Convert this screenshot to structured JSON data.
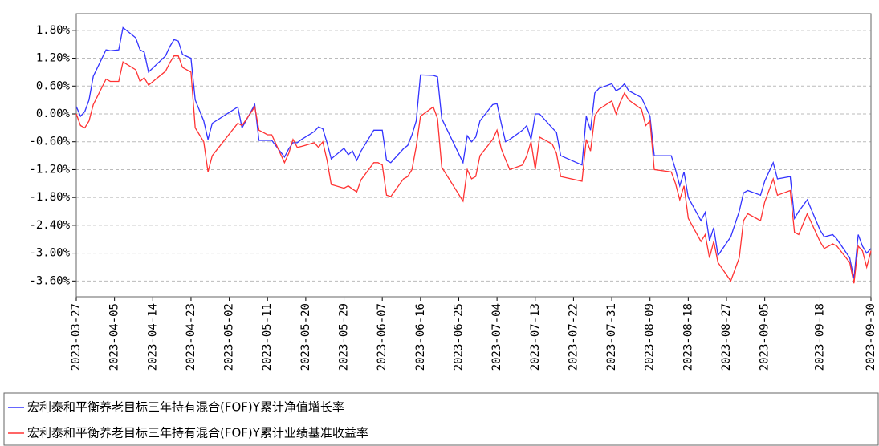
{
  "chart_data": {
    "type": "line",
    "x": [
      "2023-03-27",
      "2023-03-28",
      "2023-03-29",
      "2023-03-30",
      "2023-03-31",
      "2023-04-03",
      "2023-04-04",
      "2023-04-06",
      "2023-04-07",
      "2023-04-10",
      "2023-04-11",
      "2023-04-12",
      "2023-04-13",
      "2023-04-17",
      "2023-04-18",
      "2023-04-19",
      "2023-04-20",
      "2023-04-21",
      "2023-04-23",
      "2023-04-24",
      "2023-04-26",
      "2023-04-27",
      "2023-04-28",
      "2023-05-04",
      "2023-05-05",
      "2023-05-08",
      "2023-05-09",
      "2023-05-10",
      "2023-05-11",
      "2023-05-12",
      "2023-05-15",
      "2023-05-16",
      "2023-05-17",
      "2023-05-18",
      "2023-05-19",
      "2023-05-22",
      "2023-05-23",
      "2023-05-24",
      "2023-05-25",
      "2023-05-26",
      "2023-05-29",
      "2023-05-30",
      "2023-05-31",
      "2023-06-01",
      "2023-06-02",
      "2023-06-05",
      "2023-06-06",
      "2023-06-07",
      "2023-06-08",
      "2023-06-09",
      "2023-06-12",
      "2023-06-13",
      "2023-06-14",
      "2023-06-15",
      "2023-06-16",
      "2023-06-19",
      "2023-06-20",
      "2023-06-21",
      "2023-06-26",
      "2023-06-27",
      "2023-06-28",
      "2023-06-29",
      "2023-06-30",
      "2023-07-03",
      "2023-07-04",
      "2023-07-05",
      "2023-07-06",
      "2023-07-07",
      "2023-07-10",
      "2023-07-11",
      "2023-07-12",
      "2023-07-13",
      "2023-07-14",
      "2023-07-17",
      "2023-07-18",
      "2023-07-19",
      "2023-07-24",
      "2023-07-25",
      "2023-07-26",
      "2023-07-27",
      "2023-07-28",
      "2023-07-31",
      "2023-08-01",
      "2023-08-02",
      "2023-08-03",
      "2023-08-04",
      "2023-08-07",
      "2023-08-08",
      "2023-08-09",
      "2023-08-10",
      "2023-08-14",
      "2023-08-15",
      "2023-08-16",
      "2023-08-17",
      "2023-08-18",
      "2023-08-21",
      "2023-08-22",
      "2023-08-23",
      "2023-08-24",
      "2023-08-25",
      "2023-08-28",
      "2023-08-30",
      "2023-08-31",
      "2023-09-01",
      "2023-09-04",
      "2023-09-05",
      "2023-09-07",
      "2023-09-08",
      "2023-09-11",
      "2023-09-12",
      "2023-09-13",
      "2023-09-15",
      "2023-09-18",
      "2023-09-19",
      "2023-09-21",
      "2023-09-22",
      "2023-09-25",
      "2023-09-26",
      "2023-09-27",
      "2023-09-28",
      "2023-09-29",
      "2023-09-30"
    ],
    "series": [
      {
        "name": "宏利泰和平衡养老目标三年持有混合(FOF)Y累计净值增长率",
        "color": "#3333ff",
        "values": [
          0.16,
          -0.05,
          0.05,
          0.3,
          0.81,
          1.38,
          1.36,
          1.38,
          1.86,
          1.64,
          1.38,
          1.33,
          0.9,
          1.25,
          1.45,
          1.6,
          1.57,
          1.28,
          1.2,
          0.3,
          -0.15,
          -0.55,
          -0.2,
          0.15,
          -0.3,
          0.2,
          -0.57,
          -0.57,
          -0.57,
          -0.57,
          -0.93,
          -0.75,
          -0.62,
          -0.62,
          -0.55,
          -0.38,
          -0.28,
          -0.32,
          -0.62,
          -0.97,
          -0.74,
          -0.88,
          -0.8,
          -1.0,
          -0.8,
          -0.35,
          -0.35,
          -0.35,
          -1.0,
          -1.05,
          -0.75,
          -0.68,
          -0.45,
          -0.15,
          0.84,
          0.83,
          0.8,
          -0.1,
          -1.05,
          -0.47,
          -0.6,
          -0.5,
          -0.15,
          0.2,
          0.22,
          -0.2,
          -0.6,
          -0.55,
          -0.35,
          -0.25,
          -0.55,
          0.0,
          0.0,
          -0.3,
          -0.4,
          -0.9,
          -1.1,
          -0.05,
          -0.35,
          0.45,
          0.55,
          0.65,
          0.5,
          0.55,
          0.65,
          0.5,
          0.35,
          0.15,
          -0.05,
          -0.9,
          -0.9,
          -1.2,
          -1.55,
          -1.25,
          -1.8,
          -2.3,
          -2.12,
          -2.73,
          -2.45,
          -3.05,
          -2.65,
          -2.1,
          -1.7,
          -1.65,
          -1.75,
          -1.45,
          -1.05,
          -1.4,
          -1.35,
          -2.25,
          -2.1,
          -1.85,
          -2.5,
          -2.65,
          -2.6,
          -2.7,
          -3.1,
          -3.55,
          -2.6,
          -2.85,
          -3.0,
          -2.9
        ]
      },
      {
        "name": "宏利泰和平衡养老目标三年持有混合(FOF)Y累计业绩基准收益率",
        "color": "#ff3333",
        "values": [
          0.0,
          -0.25,
          -0.3,
          -0.15,
          0.2,
          0.75,
          0.7,
          0.7,
          1.12,
          0.95,
          0.7,
          0.78,
          0.62,
          0.92,
          1.1,
          1.25,
          1.25,
          1.0,
          0.9,
          -0.3,
          -0.6,
          -1.25,
          -0.9,
          -0.2,
          -0.25,
          0.15,
          -0.35,
          -0.4,
          -0.45,
          -0.45,
          -1.05,
          -0.85,
          -0.55,
          -0.72,
          -0.7,
          -0.62,
          -0.72,
          -0.6,
          -1.0,
          -1.52,
          -1.6,
          -1.55,
          -1.62,
          -1.68,
          -1.42,
          -1.05,
          -1.05,
          -1.1,
          -1.75,
          -1.78,
          -1.4,
          -1.35,
          -1.2,
          -0.7,
          -0.05,
          0.15,
          -0.1,
          -1.15,
          -1.88,
          -1.2,
          -1.4,
          -1.35,
          -0.9,
          -0.55,
          -0.35,
          -0.75,
          -0.98,
          -1.2,
          -1.1,
          -0.9,
          -0.6,
          -1.2,
          -0.5,
          -0.65,
          -0.85,
          -1.35,
          -1.45,
          -0.55,
          -0.8,
          -0.05,
          0.1,
          0.28,
          0.0,
          0.25,
          0.45,
          0.3,
          0.1,
          -0.25,
          -0.15,
          -1.2,
          -1.25,
          -1.5,
          -1.85,
          -1.55,
          -2.25,
          -2.75,
          -2.6,
          -3.1,
          -2.75,
          -3.2,
          -3.6,
          -3.1,
          -2.3,
          -2.15,
          -2.3,
          -1.9,
          -1.4,
          -1.75,
          -1.65,
          -2.55,
          -2.6,
          -2.15,
          -2.75,
          -2.9,
          -2.8,
          -2.85,
          -3.2,
          -3.65,
          -2.85,
          -2.95,
          -3.3,
          -2.95
        ]
      }
    ],
    "xlim": [
      "2023-03-27",
      "2023-09-30"
    ],
    "xticks": [
      "2023-03-27",
      "2023-04-05",
      "2023-04-14",
      "2023-04-23",
      "2023-05-02",
      "2023-05-11",
      "2023-05-20",
      "2023-05-29",
      "2023-06-07",
      "2023-06-16",
      "2023-06-25",
      "2023-07-04",
      "2023-07-13",
      "2023-07-22",
      "2023-07-31",
      "2023-08-09",
      "2023-08-18",
      "2023-08-27",
      "2023-09-05",
      "2023-09-18",
      "2023-09-30"
    ],
    "ylim": [
      -3.94,
      2.16
    ],
    "yticks": [
      {
        "value": 1.8,
        "label": "1.80%"
      },
      {
        "value": 1.2,
        "label": "1.20%"
      },
      {
        "value": 0.6,
        "label": "0.60%"
      },
      {
        "value": 0,
        "label": "0.00%"
      },
      {
        "value": -0.6,
        "label": "-0.60%"
      },
      {
        "value": -1.2,
        "label": "-1.20%"
      },
      {
        "value": -1.8,
        "label": "-1.80%"
      },
      {
        "value": -2.4,
        "label": "-2.40%"
      },
      {
        "value": -3.0,
        "label": "-3.00%"
      },
      {
        "value": -3.6,
        "label": "-3.60%"
      }
    ],
    "grid": true
  }
}
